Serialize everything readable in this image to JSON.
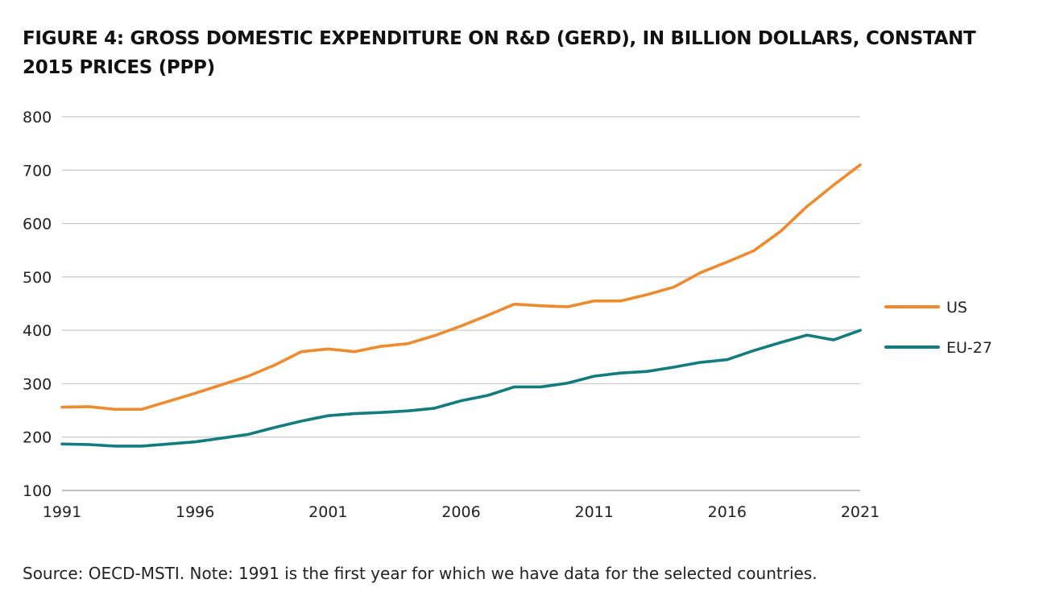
{
  "figure": {
    "title": "FIGURE 4: GROSS DOMESTIC EXPENDITURE ON R&D (GERD), IN BILLION DOLLARS, CONSTANT 2015 PRICES (PPP)",
    "source_note": "Source: OECD-MSTI. Note: 1991 is the first year for which we have data for the selected countries."
  },
  "chart_data": {
    "type": "line",
    "title": "FIGURE 4: GROSS DOMESTIC EXPENDITURE ON R&D (GERD), IN BILLION DOLLARS, CONSTANT 2015 PRICES (PPP)",
    "xlabel": "",
    "ylabel": "",
    "x": [
      1991,
      1992,
      1993,
      1994,
      1995,
      1996,
      1997,
      1998,
      1999,
      2000,
      2001,
      2002,
      2003,
      2004,
      2005,
      2006,
      2007,
      2008,
      2009,
      2010,
      2011,
      2012,
      2013,
      2014,
      2015,
      2016,
      2017,
      2018,
      2019,
      2020,
      2021
    ],
    "xlim": [
      1991,
      2021
    ],
    "ylim": [
      100,
      800
    ],
    "x_ticks": [
      "1991",
      "1996",
      "2001",
      "2006",
      "2011",
      "2016",
      "2021"
    ],
    "y_ticks": [
      "100",
      "200",
      "300",
      "400",
      "500",
      "600",
      "700",
      "800"
    ],
    "grid": "horizontal",
    "legend_position": "right",
    "series": [
      {
        "name": "US",
        "color": "#ED8B2E",
        "values": [
          256,
          257,
          252,
          252,
          267,
          282,
          298,
          314,
          335,
          360,
          365,
          360,
          370,
          375,
          390,
          408,
          428,
          449,
          446,
          444,
          455,
          455,
          467,
          481,
          508,
          528,
          549,
          585,
          632,
          672,
          710
        ]
      },
      {
        "name": "EU-27",
        "color": "#127C7E",
        "values": [
          187,
          186,
          183,
          183,
          187,
          191,
          198,
          205,
          218,
          230,
          240,
          244,
          246,
          249,
          254,
          268,
          278,
          294,
          294,
          301,
          314,
          320,
          323,
          331,
          340,
          345,
          362,
          377,
          391,
          382,
          400
        ]
      }
    ]
  },
  "style": {
    "gridline_color": "#c8c8c8",
    "axis_color": "#999999"
  }
}
